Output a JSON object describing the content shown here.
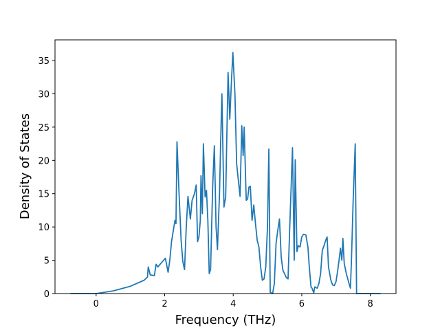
{
  "chart_data": {
    "type": "line",
    "xlabel": "Frequency (THz)",
    "ylabel": "Density of States",
    "color": "#1f77b4",
    "x": [
      -0.75,
      0,
      0.5,
      1.0,
      1.4,
      1.5,
      1.52,
      1.58,
      1.7,
      1.75,
      1.8,
      1.9,
      2.02,
      2.1,
      2.15,
      2.2,
      2.3,
      2.33,
      2.36,
      2.42,
      2.48,
      2.53,
      2.58,
      2.63,
      2.68,
      2.75,
      2.8,
      2.87,
      2.92,
      2.96,
      3.0,
      3.04,
      3.06,
      3.1,
      3.13,
      3.18,
      3.22,
      3.26,
      3.3,
      3.34,
      3.4,
      3.45,
      3.5,
      3.54,
      3.6,
      3.64,
      3.67,
      3.73,
      3.78,
      3.85,
      3.9,
      3.95,
      3.99,
      4.05,
      4.1,
      4.15,
      4.2,
      4.25,
      4.29,
      4.32,
      4.38,
      4.42,
      4.46,
      4.5,
      4.55,
      4.6,
      4.65,
      4.7,
      4.75,
      4.8,
      4.85,
      4.9,
      4.95,
      5.0,
      5.04,
      5.08,
      5.15,
      5.2,
      5.25,
      5.3,
      5.35,
      5.4,
      5.45,
      5.55,
      5.6,
      5.65,
      5.73,
      5.78,
      5.81,
      5.86,
      5.9,
      5.95,
      6.0,
      6.05,
      6.12,
      6.18,
      6.22,
      6.27,
      6.3,
      6.35,
      6.38,
      6.45,
      6.5,
      6.55,
      6.6,
      6.65,
      6.7,
      6.74,
      6.78,
      6.85,
      6.9,
      6.95,
      7.0,
      7.05,
      7.1,
      7.13,
      7.17,
      7.2,
      7.24,
      7.3,
      7.38,
      7.42,
      7.45,
      7.5,
      7.56,
      7.6,
      8.3
    ],
    "values": [
      0,
      0,
      0.4,
      1.1,
      2.0,
      2.5,
      4.0,
      2.8,
      2.7,
      4.4,
      4.0,
      4.6,
      5.3,
      3.2,
      5.0,
      7.8,
      11.0,
      10.5,
      22.8,
      15,
      8,
      4.8,
      3.6,
      10,
      14.6,
      11.2,
      14,
      15,
      16.3,
      7.8,
      8.5,
      11,
      17.7,
      12,
      22.5,
      14.5,
      15.5,
      11,
      3.0,
      3.6,
      16,
      22.2,
      10,
      6.6,
      15,
      24,
      30,
      13,
      14.5,
      33.2,
      26.2,
      32,
      36.2,
      30,
      19.5,
      17,
      14.6,
      25.2,
      20.7,
      25,
      14,
      14.2,
      16,
      16.1,
      11,
      13.3,
      10.5,
      8,
      7,
      4,
      2,
      2.2,
      4,
      10,
      21.7,
      0.2,
      0,
      1.5,
      7.5,
      9.5,
      11.2,
      5.5,
      3.5,
      2.4,
      2.2,
      10,
      21.9,
      5,
      20.1,
      6.3,
      7.2,
      7,
      8.5,
      8.9,
      8.8,
      7,
      4,
      1,
      0.8,
      0.1,
      1,
      0.8,
      1.5,
      3,
      6.5,
      7.2,
      8,
      8.5,
      4,
      2,
      1.3,
      1.2,
      1.8,
      3.5,
      5.5,
      6.8,
      5,
      8.3,
      4.5,
      3,
      1.5,
      0.8,
      5,
      14,
      22.5,
      0,
      0
    ],
    "xlim": [
      -1.2,
      8.75
    ],
    "ylim": [
      0,
      38.1
    ],
    "xticks": [
      0,
      2,
      4,
      6,
      8
    ],
    "yticks": [
      0,
      5,
      10,
      15,
      20,
      25,
      30,
      35
    ]
  }
}
